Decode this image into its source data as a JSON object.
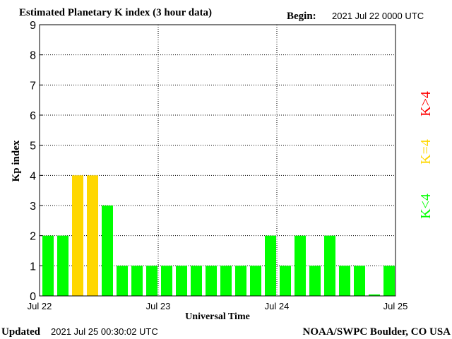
{
  "title": "Estimated Planetary K index (3 hour data)",
  "begin_label": "Begin:",
  "begin_value": "2021 Jul 22 0000 UTC",
  "updated_label": "Updated",
  "updated_value": "2021 Jul 25 00:30:02 UTC",
  "credit": "NOAA/SWPC Boulder, CO USA",
  "legend": {
    "above": {
      "text": "K>4",
      "color": "#ff0000"
    },
    "equal": {
      "text": "K=4",
      "color": "#ffd700"
    },
    "below": {
      "text": "K<4",
      "color": "#00ff00"
    }
  },
  "colors": {
    "below": "#00ff00",
    "equal": "#ffd700",
    "above": "#ff0000",
    "grid": "#000000"
  },
  "chart_data": {
    "type": "bar",
    "title": "Estimated Planetary K index (3 hour data)",
    "xlabel": "Universal Time",
    "ylabel": "Kp index",
    "ylim": [
      0,
      9
    ],
    "yticks": [
      "0",
      "1",
      "2",
      "3",
      "4",
      "5",
      "6",
      "7",
      "8",
      "9"
    ],
    "xticks": [
      "Jul 22",
      "Jul 23",
      "Jul 24",
      "Jul 25"
    ],
    "bars_per_day": 8,
    "grid": true,
    "values": [
      2,
      2,
      4,
      4,
      3,
      1,
      1,
      1,
      1,
      1,
      1,
      1,
      1,
      1,
      1,
      2,
      1,
      2,
      1,
      2,
      1,
      1,
      0.05,
      1
    ]
  }
}
